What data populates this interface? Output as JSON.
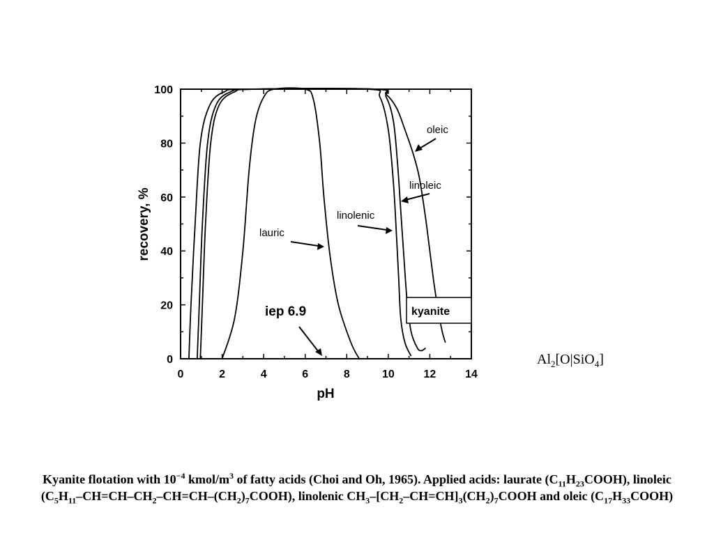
{
  "chart_data": {
    "type": "line",
    "xlabel": "pH",
    "ylabel": "recovery, %",
    "xlim": [
      0,
      14
    ],
    "ylim": [
      0,
      100
    ],
    "x_ticks": [
      "0",
      "2",
      "4",
      "6",
      "8",
      "10",
      "12",
      "14"
    ],
    "y_ticks": [
      "0",
      "20",
      "40",
      "60",
      "80",
      "100"
    ],
    "grid": false,
    "series": [
      {
        "name": "lauric",
        "points": [
          [
            2.0,
            0
          ],
          [
            2.6,
            15
          ],
          [
            3.0,
            40
          ],
          [
            3.3,
            70
          ],
          [
            3.6,
            88
          ],
          [
            4.0,
            97
          ],
          [
            4.5,
            100
          ],
          [
            6.0,
            100
          ],
          [
            6.4,
            96
          ],
          [
            6.7,
            80
          ],
          [
            6.9,
            60
          ],
          [
            7.2,
            38
          ],
          [
            7.6,
            20
          ],
          [
            8.2,
            6
          ],
          [
            8.6,
            0
          ]
        ]
      },
      {
        "name": "linolenic",
        "points": [
          [
            0.8,
            0
          ],
          [
            0.9,
            20
          ],
          [
            1.05,
            50
          ],
          [
            1.3,
            80
          ],
          [
            1.7,
            94
          ],
          [
            2.4,
            99
          ],
          [
            3.5,
            100
          ],
          [
            9.0,
            100
          ],
          [
            9.6,
            97
          ],
          [
            10.0,
            85
          ],
          [
            10.25,
            65
          ],
          [
            10.4,
            45
          ],
          [
            10.5,
            30
          ],
          [
            10.6,
            15
          ],
          [
            10.8,
            6
          ],
          [
            11.1,
            1
          ]
        ]
      },
      {
        "name": "linoleic",
        "points": [
          [
            0.95,
            0
          ],
          [
            1.05,
            20
          ],
          [
            1.2,
            50
          ],
          [
            1.45,
            80
          ],
          [
            1.85,
            94
          ],
          [
            2.6,
            99
          ],
          [
            3.6,
            100
          ],
          [
            9.4,
            100
          ],
          [
            9.9,
            97
          ],
          [
            10.25,
            88
          ],
          [
            10.45,
            72
          ],
          [
            10.6,
            55
          ],
          [
            10.75,
            38
          ],
          [
            10.9,
            22
          ],
          [
            11.1,
            10
          ],
          [
            11.4,
            4
          ],
          [
            11.6,
            3
          ],
          [
            11.8,
            4
          ]
        ]
      },
      {
        "name": "oleic",
        "points": [
          [
            0.4,
            0
          ],
          [
            0.5,
            20
          ],
          [
            0.7,
            50
          ],
          [
            0.95,
            80
          ],
          [
            1.4,
            94
          ],
          [
            2.1,
            99
          ],
          [
            3.2,
            100
          ],
          [
            9.3,
            100
          ],
          [
            9.9,
            98
          ],
          [
            10.4,
            93
          ],
          [
            10.8,
            85
          ],
          [
            11.2,
            76
          ],
          [
            11.5,
            67
          ],
          [
            11.8,
            52
          ],
          [
            12.0,
            40
          ],
          [
            12.2,
            28
          ],
          [
            12.4,
            18
          ],
          [
            12.6,
            10
          ],
          [
            12.75,
            6
          ]
        ]
      }
    ],
    "annotations": [
      {
        "text": "oleic",
        "series": "oleic"
      },
      {
        "text": "linoleic",
        "series": "linoleic"
      },
      {
        "text": "linolenic",
        "series": "linolenic"
      },
      {
        "text": "lauric",
        "series": "lauric"
      },
      {
        "text": "iep 6.9",
        "x": 6.9
      },
      {
        "text": "kyanite"
      }
    ]
  },
  "formula": {
    "base": "Al",
    "s1": "2",
    "mid": "[O|SiO",
    "s2": "4",
    "end": "]"
  },
  "caption": {
    "p1": "Kyanite flotation with 10",
    "exp1": "−4",
    "p2": " kmol/m",
    "exp2": "3",
    "p3": " of fatty acids (Choi and Oh, 1965). Applied acids: laurate (C",
    "s1": "11",
    "p4": "H",
    "s2": "23",
    "p5": "COOH), linoleic (C",
    "s3": "5",
    "p6": "H",
    "s4": "11",
    "p7": "–CH=CH–CH",
    "s5": "2",
    "p8": "–CH=CH–(CH",
    "s6": "2",
    "p9": ")",
    "s7": "7",
    "p10": "COOH), linolenic CH",
    "s8": "3",
    "p11": "–[CH",
    "s9": "2",
    "p12": "–CH=CH]",
    "s10": "3",
    "p13": "(CH",
    "s11": "2",
    "p14": ")",
    "s12": "7",
    "p15": "COOH and oleic (C",
    "s13": "17",
    "p16": "H",
    "s14": "33",
    "p17": "COOH)"
  }
}
